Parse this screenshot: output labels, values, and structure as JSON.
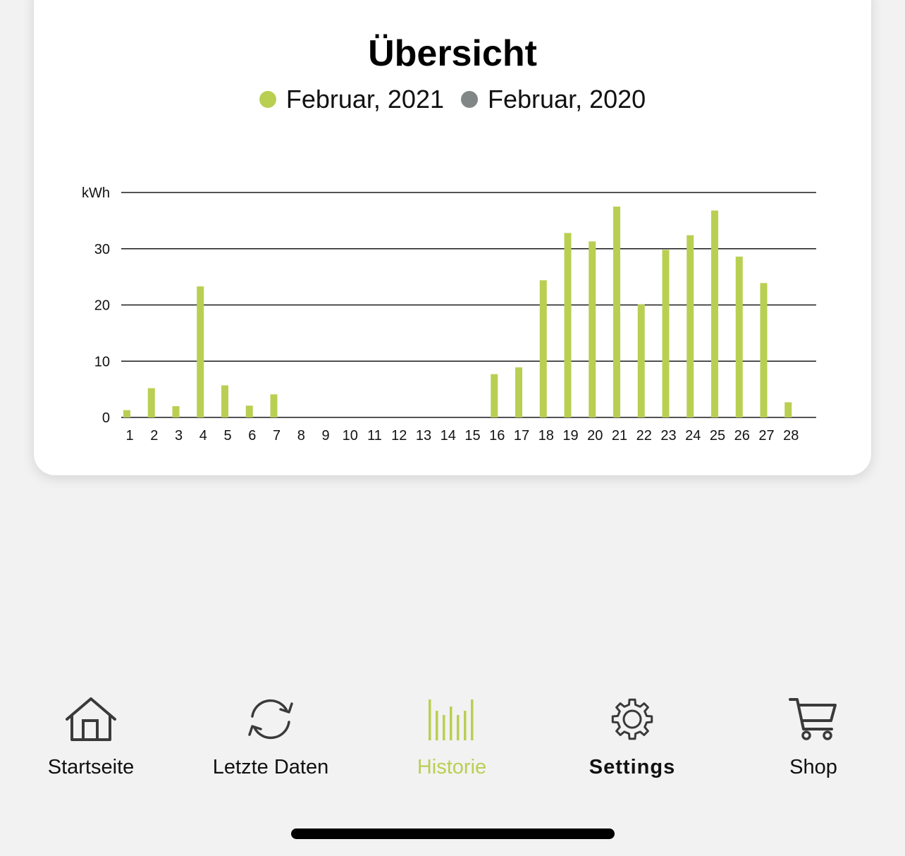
{
  "card": {
    "title": "Übersicht",
    "legend": [
      {
        "label": "Februar, 2021",
        "color": "#b9cf52"
      },
      {
        "label": "Februar, 2020",
        "color": "#818786"
      }
    ]
  },
  "chart_data": {
    "type": "bar",
    "title": "",
    "ylabel": "kWh",
    "xlabel": "",
    "ylim": [
      0,
      40
    ],
    "yticks": [
      "0",
      "10",
      "20",
      "30",
      "kWh"
    ],
    "categories": [
      "1",
      "2",
      "3",
      "4",
      "5",
      "6",
      "7",
      "8",
      "9",
      "10",
      "11",
      "12",
      "13",
      "14",
      "15",
      "16",
      "17",
      "18",
      "19",
      "20",
      "21",
      "22",
      "23",
      "24",
      "25",
      "26",
      "27",
      "28"
    ],
    "series": [
      {
        "name": "Februar, 2021",
        "color": "#b9cf52",
        "values": [
          1.3,
          5.2,
          2.0,
          23.3,
          5.7,
          2.1,
          4.1,
          0,
          0,
          0,
          0,
          0,
          0,
          0,
          0,
          7.7,
          8.9,
          24.4,
          32.8,
          31.3,
          37.5,
          20.1,
          29.8,
          32.4,
          36.8,
          28.6,
          23.9,
          2.7
        ]
      }
    ],
    "grid": true
  },
  "tabbar": {
    "items": [
      {
        "label": "Startseite",
        "icon": "house-icon"
      },
      {
        "label": "Letzte Daten",
        "icon": "refresh-icon"
      },
      {
        "label": "Historie",
        "icon": "history-bars-icon",
        "active": true
      },
      {
        "label": "Settings",
        "icon": "gear-icon"
      },
      {
        "label": "Shop",
        "icon": "cart-icon"
      }
    ],
    "active_color": "#b9cf52"
  }
}
